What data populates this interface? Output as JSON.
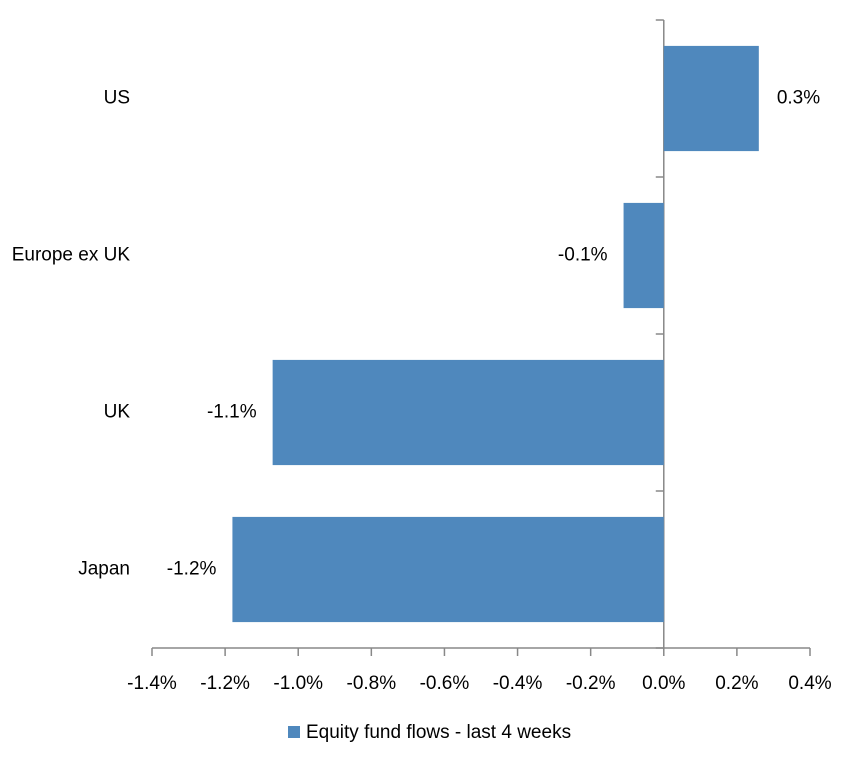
{
  "chart_data": {
    "type": "bar",
    "orientation": "horizontal",
    "categories": [
      "US",
      "Europe ex UK",
      "UK",
      "Japan"
    ],
    "series": [
      {
        "name": "Equity fund flows - last 4 weeks",
        "color": "#4f88bd",
        "values": [
          0.26,
          -0.11,
          -1.07,
          -1.18
        ],
        "value_labels": [
          "0.3%",
          "-0.1%",
          "-1.1%",
          "-1.2%"
        ]
      }
    ],
    "xlim": [
      -1.4,
      0.4
    ],
    "xticks": [
      {
        "value": -1.4,
        "label": "-1.4%"
      },
      {
        "value": -1.2,
        "label": "-1.2%"
      },
      {
        "value": -1.0,
        "label": "-1.0%"
      },
      {
        "value": -0.8,
        "label": "-0.8%"
      },
      {
        "value": -0.6,
        "label": "-0.6%"
      },
      {
        "value": -0.4,
        "label": "-0.4%"
      },
      {
        "value": -0.2,
        "label": "-0.2%"
      },
      {
        "value": 0.0,
        "label": "0.0%"
      },
      {
        "value": 0.2,
        "label": "0.2%"
      },
      {
        "value": 0.4,
        "label": "0.4%"
      }
    ],
    "grid": false,
    "legend": "bottom"
  }
}
